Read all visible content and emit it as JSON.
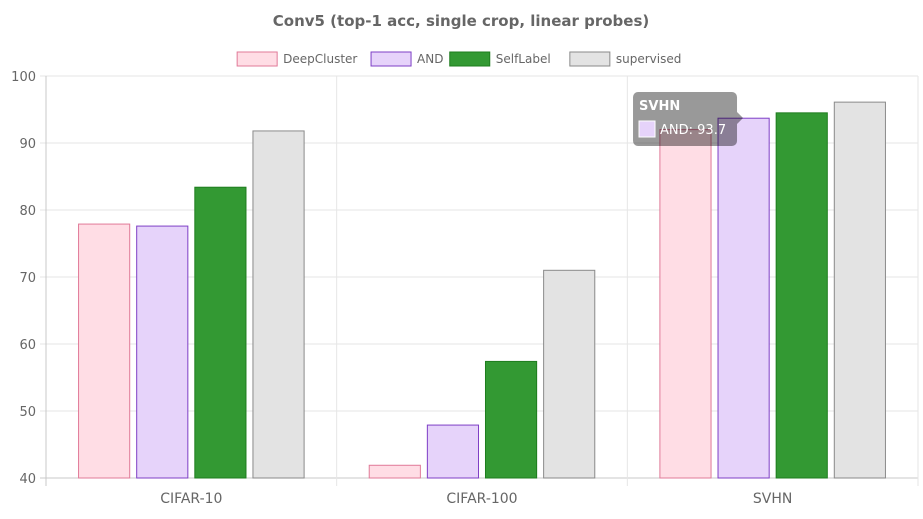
{
  "chart_data": {
    "type": "bar",
    "title": "Conv5 (top-1 acc, single crop, linear probes)",
    "categories": [
      "CIFAR-10",
      "CIFAR-100",
      "SVHN"
    ],
    "series": [
      {
        "name": "DeepCluster",
        "values": [
          77.9,
          41.9,
          92.0
        ],
        "fill": "#ffdde5",
        "stroke": "#e07a98"
      },
      {
        "name": "AND",
        "values": [
          77.6,
          47.9,
          93.7
        ],
        "fill": "#e6d3fa",
        "stroke": "#7e3fc6"
      },
      {
        "name": "SelfLabel",
        "values": [
          83.4,
          57.4,
          94.5
        ],
        "fill": "#339933",
        "stroke": "#1e7d1e"
      },
      {
        "name": "supervised",
        "values": [
          91.8,
          71.0,
          96.1
        ],
        "fill": "#e3e3e3",
        "stroke": "#8a8a8a"
      }
    ],
    "ylim": [
      40,
      100
    ],
    "yticks": [
      40,
      50,
      60,
      70,
      80,
      90,
      100
    ],
    "grid": true,
    "legend_position": "top",
    "tooltip": {
      "title": "SVHN",
      "label": "AND: 93.7",
      "series": "AND",
      "category": "SVHN"
    }
  }
}
